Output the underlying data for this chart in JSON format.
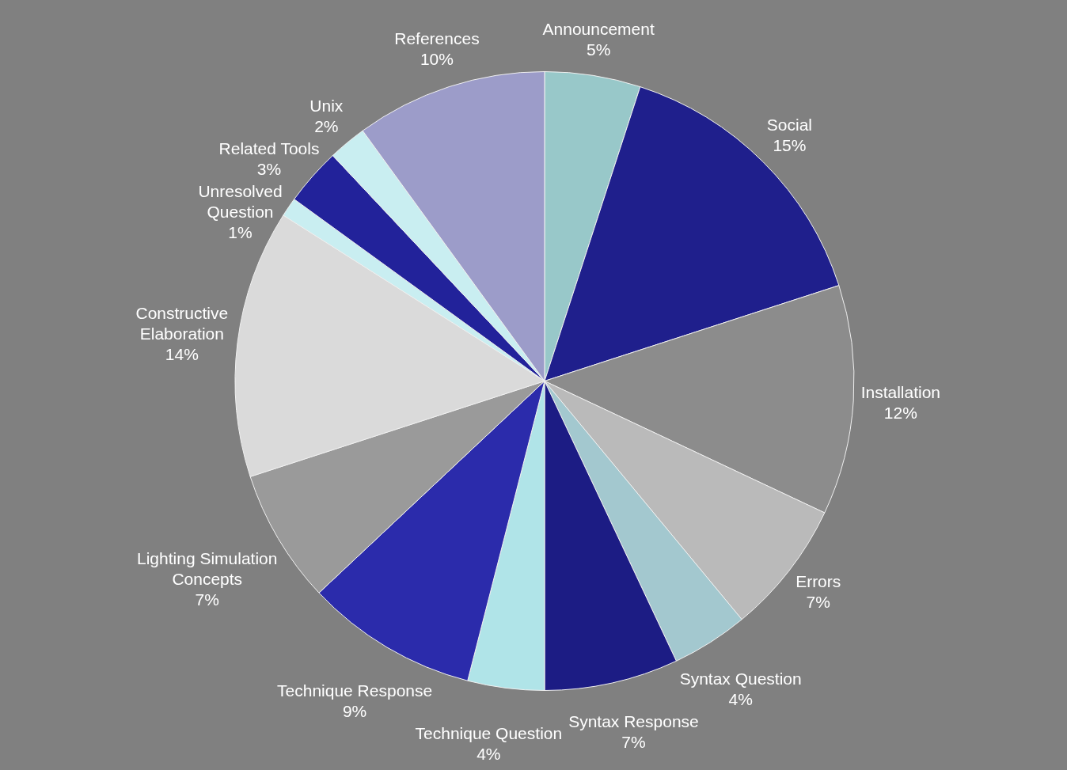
{
  "chart_data": {
    "type": "pie",
    "categories": [
      "Announcement",
      "Social",
      "Installation",
      "Errors",
      "Syntax Question",
      "Syntax Response",
      "Technique Question",
      "Technique Response",
      "Lighting Simulation Concepts",
      "Constructive Elaboration",
      "Unresolved Question",
      "Related Tools",
      "Unix",
      "References"
    ],
    "values": [
      5,
      15,
      12,
      7,
      4,
      7,
      4,
      9,
      7,
      14,
      1,
      3,
      2,
      10
    ],
    "value_labels": [
      "5%",
      "15%",
      "12%",
      "7%",
      "4%",
      "7%",
      "4%",
      "9%",
      "7%",
      "14%",
      "1%",
      "3%",
      "2%",
      "10%"
    ],
    "colors": [
      "#98c8c9",
      "#1f1f8c",
      "#8c8c8c",
      "#bababa",
      "#a3c8cf",
      "#1c1c84",
      "#b0e4e8",
      "#2b2bab",
      "#9a9a9a",
      "#dadada",
      "#c9eef1",
      "#22229a",
      "#c9eef1",
      "#9c9cc9"
    ],
    "legend": false
  }
}
